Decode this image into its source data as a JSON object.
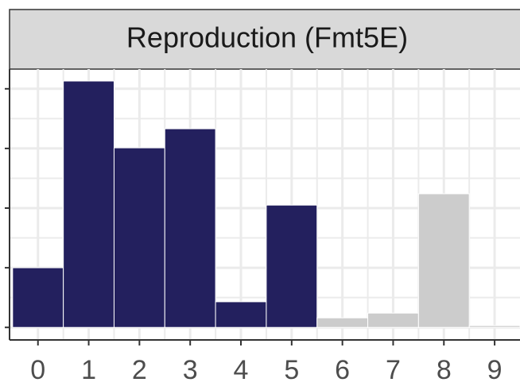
{
  "chart_data": {
    "type": "bar",
    "title": "Reproduction (Fmt5E)",
    "x": [
      0,
      1,
      2,
      3,
      4,
      5,
      6,
      7,
      8,
      9
    ],
    "values": [
      1.0,
      4.13,
      3.01,
      3.33,
      0.43,
      2.05,
      0.16,
      0.24,
      2.24,
      0.03
    ],
    "colors": [
      "#23205e",
      "#23205e",
      "#23205e",
      "#23205e",
      "#23205e",
      "#23205e",
      "#cccccc",
      "#cccccc",
      "#cccccc",
      "#cccccc"
    ],
    "xlim": [
      -0.56,
      9.5
    ],
    "xticks": [
      0,
      1,
      2,
      3,
      4,
      5,
      6,
      7,
      8,
      9
    ],
    "ylim": [
      -0.21,
      4.33
    ],
    "yticks": [
      0,
      1,
      2,
      3,
      4
    ],
    "grid": true
  }
}
